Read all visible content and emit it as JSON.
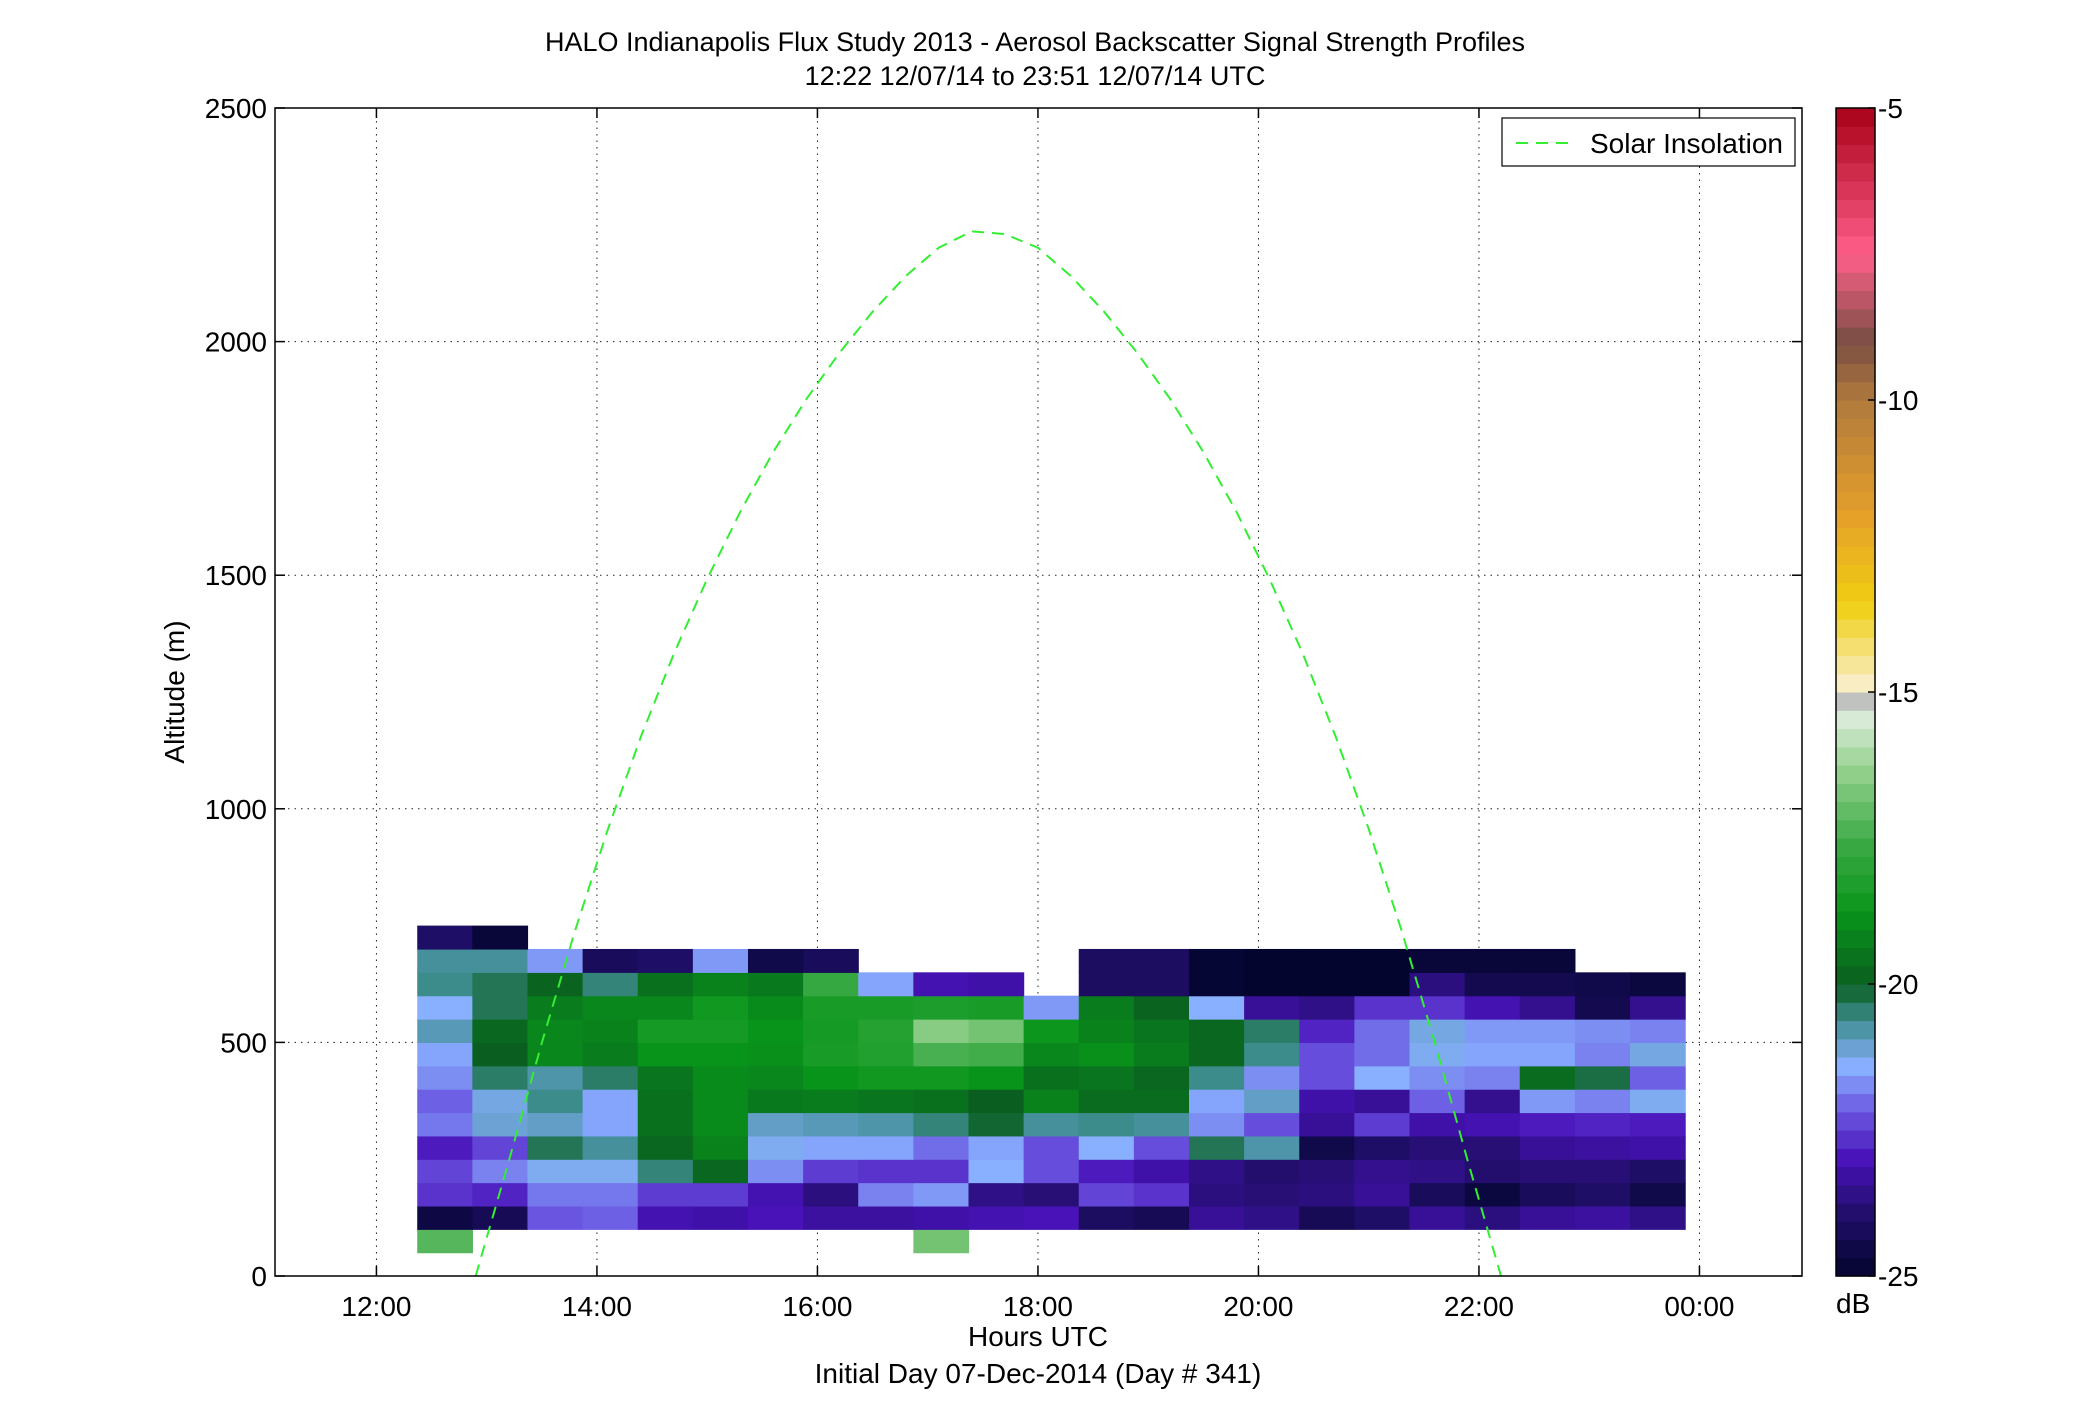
{
  "chart_data": {
    "type": "heatmap",
    "title": "HALO Indianapolis Flux Study 2013 - Aerosol Backscatter Signal Strength Profiles",
    "subtitle": "12:22 12/07/14 to 23:51 12/07/14  UTC",
    "xlabel": "Hours UTC",
    "xlabel2": "Initial Day 07-Dec-2014 (Day # 341)",
    "ylabel": "Altitude (m)",
    "xlim": [
      11.08,
      24.93
    ],
    "ylim": [
      0,
      2500
    ],
    "grid": true,
    "x_ticks": [
      {
        "value": 12,
        "label": "12:00"
      },
      {
        "value": 14,
        "label": "14:00"
      },
      {
        "value": 16,
        "label": "16:00"
      },
      {
        "value": 18,
        "label": "18:00"
      },
      {
        "value": 20,
        "label": "20:00"
      },
      {
        "value": 22,
        "label": "22:00"
      },
      {
        "value": 24,
        "label": "00:00"
      }
    ],
    "y_ticks": [
      {
        "value": 0,
        "label": "0"
      },
      {
        "value": 500,
        "label": "500"
      },
      {
        "value": 1000,
        "label": "1000"
      },
      {
        "value": 1500,
        "label": "1500"
      },
      {
        "value": 2000,
        "label": "2000"
      },
      {
        "value": 2500,
        "label": "2500"
      }
    ],
    "legend": {
      "position": "top-right",
      "entries": [
        {
          "name": "Solar Insolation",
          "style": "dashed",
          "color": "#33ee33"
        }
      ]
    },
    "colorbar": {
      "unit": "dB",
      "range": [
        -25,
        -5
      ],
      "ticks": [
        {
          "value": -5,
          "label": "-5"
        },
        {
          "value": -10,
          "label": "-10"
        },
        {
          "value": -15,
          "label": "-15"
        },
        {
          "value": -20,
          "label": "-20"
        },
        {
          "value": -25,
          "label": "-25"
        }
      ],
      "stops": [
        {
          "v": -25,
          "c": "#03052e"
        },
        {
          "v": -24,
          "c": "#1f0e66"
        },
        {
          "v": -23,
          "c": "#4812b8"
        },
        {
          "v": -22.2,
          "c": "#6a55e0"
        },
        {
          "v": -21.4,
          "c": "#88b0ff"
        },
        {
          "v": -20.6,
          "c": "#3c8c8c"
        },
        {
          "v": -20,
          "c": "#0a5e20"
        },
        {
          "v": -18.8,
          "c": "#08941a"
        },
        {
          "v": -17.6,
          "c": "#3aaa44"
        },
        {
          "v": -16.4,
          "c": "#8fcf8a"
        },
        {
          "v": -15.3,
          "c": "#e4efe2"
        },
        {
          "v": -15.1,
          "c": "#b0b0b0"
        },
        {
          "v": -14.9,
          "c": "#f8eecb"
        },
        {
          "v": -13.5,
          "c": "#efcf10"
        },
        {
          "v": -12,
          "c": "#e6a02a"
        },
        {
          "v": -10,
          "c": "#b07a3c"
        },
        {
          "v": -9,
          "c": "#7a4e44"
        },
        {
          "v": -7.5,
          "c": "#ff5f8a"
        },
        {
          "v": -5,
          "c": "#a80018"
        }
      ]
    },
    "time_bins_start": [
      12.37,
      12.87,
      13.37,
      13.87,
      14.37,
      14.87,
      15.37,
      15.87,
      16.37,
      16.87,
      17.37,
      17.87,
      18.37,
      18.87,
      19.37,
      19.87,
      20.37,
      20.87,
      21.37,
      21.87,
      22.37,
      22.87,
      23.37
    ],
    "time_bin_width": 0.5,
    "altitude_bins_start": [
      50,
      100,
      150,
      200,
      250,
      300,
      350,
      400,
      450,
      500,
      550,
      600,
      650,
      700
    ],
    "altitude_bin_height": 50,
    "values_db": [
      [
        -17.2,
        null,
        null,
        null,
        null,
        null,
        null,
        null,
        null,
        -16.8,
        null,
        null,
        null,
        null,
        null,
        null,
        null,
        null,
        null,
        null,
        null,
        null,
        null
      ],
      [
        -24.6,
        -24.3,
        -22.2,
        -22.1,
        -23.1,
        -23.2,
        -23.0,
        -23.3,
        -23.3,
        -23.2,
        -23.1,
        -23.0,
        -24.1,
        -24.3,
        -23.4,
        -23.6,
        -24.3,
        -24.0,
        -23.4,
        -23.7,
        -23.4,
        -23.3,
        -23.6
      ],
      [
        -22.6,
        -22.8,
        -21.9,
        -21.9,
        -22.5,
        -22.5,
        -23.1,
        -23.7,
        -21.8,
        -21.6,
        -23.6,
        -23.8,
        -22.4,
        -22.6,
        -23.7,
        -23.8,
        -23.7,
        -23.4,
        -24.2,
        -24.7,
        -24.2,
        -24.0,
        -24.5
      ],
      [
        -22.4,
        -21.8,
        -21.3,
        -21.3,
        -20.5,
        -19.8,
        -21.7,
        -22.5,
        -22.6,
        -22.6,
        -21.4,
        -22.3,
        -22.9,
        -23.2,
        -23.6,
        -23.9,
        -23.8,
        -23.5,
        -23.6,
        -23.9,
        -23.8,
        -23.8,
        -24.0
      ],
      [
        -22.9,
        -22.4,
        -20.3,
        -20.7,
        -19.8,
        -19.2,
        -21.3,
        -21.5,
        -21.5,
        -22.0,
        -21.5,
        -22.3,
        -21.4,
        -22.3,
        -20.3,
        -20.8,
        -24.5,
        -24.0,
        -23.8,
        -23.8,
        -23.4,
        -23.3,
        -23.2
      ],
      [
        -21.9,
        -21.1,
        -21.0,
        -21.5,
        -19.6,
        -19.0,
        -21.0,
        -20.9,
        -20.8,
        -20.5,
        -20.1,
        -20.7,
        -20.6,
        -20.7,
        -21.7,
        -22.3,
        -23.4,
        -22.5,
        -23.2,
        -23.1,
        -22.9,
        -22.8,
        -22.9
      ],
      [
        -22.1,
        -21.2,
        -20.6,
        -21.5,
        -19.6,
        -19.0,
        -19.4,
        -19.3,
        -19.5,
        -19.6,
        -20.0,
        -19.2,
        -19.7,
        -19.7,
        -21.5,
        -21.0,
        -23.2,
        -23.4,
        -22.1,
        -23.5,
        -21.6,
        -21.8,
        -21.3
      ],
      [
        -21.7,
        -20.4,
        -20.8,
        -20.4,
        -19.5,
        -19.0,
        -19.1,
        -18.8,
        -18.6,
        -18.6,
        -18.8,
        -19.6,
        -19.5,
        -19.8,
        -20.6,
        -21.7,
        -22.3,
        -21.4,
        -21.7,
        -21.8,
        -19.7,
        -20.2,
        -22.1
      ],
      [
        -21.5,
        -20.0,
        -19.1,
        -19.3,
        -18.8,
        -18.8,
        -18.9,
        -18.4,
        -18.2,
        -17.4,
        -17.5,
        -19.1,
        -18.9,
        -19.3,
        -19.8,
        -20.6,
        -22.3,
        -22.0,
        -21.3,
        -21.5,
        -21.5,
        -21.8,
        -21.2
      ],
      [
        -20.9,
        -19.8,
        -19.1,
        -19.2,
        -18.5,
        -18.5,
        -18.8,
        -18.5,
        -18.1,
        -16.5,
        -16.8,
        -18.7,
        -19.2,
        -19.5,
        -19.8,
        -20.4,
        -22.8,
        -22.0,
        -21.2,
        -21.6,
        -21.6,
        -21.7,
        -21.8
      ],
      [
        -21.4,
        -20.3,
        -19.3,
        -19.1,
        -19.1,
        -18.6,
        -19.0,
        -18.4,
        -18.4,
        -18.3,
        -18.4,
        -21.6,
        -19.3,
        -19.9,
        -21.4,
        -23.4,
        -23.6,
        -22.6,
        -22.6,
        -23.1,
        -23.5,
        -24.4,
        -23.5
      ],
      [
        -20.6,
        -20.3,
        -19.9,
        -20.5,
        -19.6,
        -19.2,
        -19.4,
        -17.7,
        -21.5,
        -23.1,
        -23.2,
        null,
        -24.1,
        -24.1,
        -24.9,
        -25.0,
        -25.0,
        -25.0,
        -23.7,
        -24.4,
        -24.4,
        -24.5,
        -24.7
      ],
      [
        -20.7,
        -20.7,
        -21.6,
        -24.2,
        -24.0,
        -21.6,
        -24.5,
        -24.2,
        null,
        null,
        null,
        null,
        -24.1,
        -24.1,
        -24.9,
        -25.0,
        -25.0,
        -25.0,
        -24.8,
        -24.8,
        -24.8,
        null,
        null
      ],
      [
        -24.0,
        -24.8,
        null,
        null,
        null,
        null,
        null,
        null,
        null,
        null,
        null,
        null,
        null,
        null,
        null,
        null,
        null,
        null,
        null,
        null,
        null,
        null,
        null
      ]
    ],
    "series": [
      {
        "name": "Solar Insolation",
        "x": [
          12.9,
          13.2,
          13.5,
          13.8,
          14.1,
          14.4,
          14.7,
          15.0,
          15.3,
          15.6,
          15.9,
          16.2,
          16.5,
          16.8,
          17.1,
          17.4,
          17.7,
          18.0,
          18.3,
          18.6,
          18.9,
          19.2,
          19.5,
          19.8,
          20.1,
          20.4,
          20.7,
          21.0,
          21.3,
          21.6,
          21.9,
          22.2
        ],
        "y": [
          0,
          245,
          499,
          738,
          957,
          1155,
          1333,
          1492,
          1636,
          1764,
          1877,
          1976,
          2064,
          2140,
          2201,
          2236,
          2230,
          2201,
          2140,
          2064,
          1976,
          1877,
          1764,
          1636,
          1492,
          1333,
          1155,
          957,
          738,
          499,
          245,
          0
        ]
      }
    ]
  }
}
